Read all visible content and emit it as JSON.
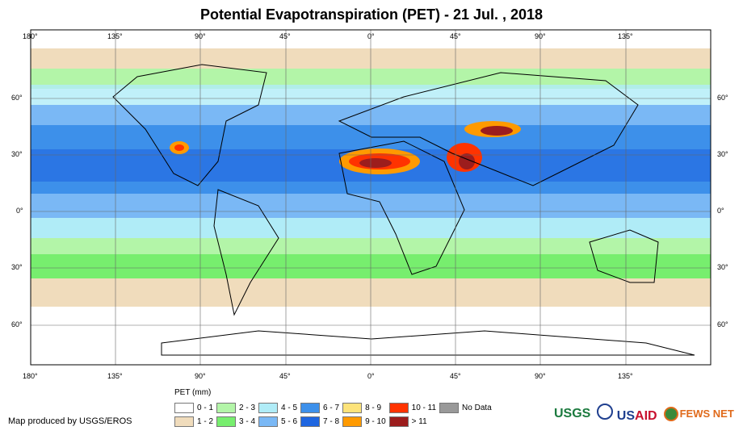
{
  "title": "Potential Evapotranspiration (PET) - 21 Jul. , 2018",
  "lon_ticks": [
    "180°",
    "135°",
    "90°",
    "45°",
    "0°",
    "45°",
    "90°",
    "135°"
  ],
  "lat_ticks": [
    "60°",
    "30°",
    "0°",
    "30°",
    "60°"
  ],
  "legend": {
    "title": "PET (mm)",
    "items": [
      {
        "label": "0 - 1",
        "color": "#ffffff"
      },
      {
        "label": "2 - 3",
        "color": "#b3f5a8"
      },
      {
        "label": "4 - 5",
        "color": "#b0ecf7"
      },
      {
        "label": "6 - 7",
        "color": "#3d90ea"
      },
      {
        "label": "8 - 9",
        "color": "#fde37a"
      },
      {
        "label": "10 - 11",
        "color": "#ff3300"
      },
      {
        "label": "No Data",
        "color": "#999999"
      },
      {
        "label": "1 - 2",
        "color": "#f0dcbc"
      },
      {
        "label": "3 - 4",
        "color": "#77ee6e"
      },
      {
        "label": "5 - 6",
        "color": "#7ab8f5"
      },
      {
        "label": "7 - 8",
        "color": "#1f66e0"
      },
      {
        "label": "9 - 10",
        "color": "#ff9a00"
      },
      {
        "label": "> 11",
        "color": "#9c1d1d"
      }
    ]
  },
  "credit": "Map produced by USGS/EROS",
  "logos": {
    "usgs": "USGS",
    "usaid_a": "US",
    "usaid_b": "AID",
    "fews": "FEWS NET"
  }
}
